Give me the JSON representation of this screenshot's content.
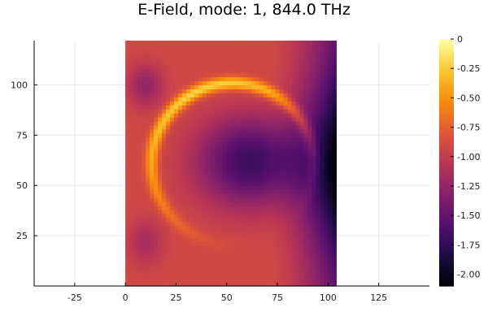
{
  "chart_data": {
    "type": "heatmap",
    "title": "E-Field, mode: 1, 844.0 THz",
    "xlabel": "",
    "ylabel": "",
    "xlim": [
      -45,
      150
    ],
    "ylim": [
      0,
      122
    ],
    "x_ticks": [
      -25,
      0,
      25,
      50,
      75,
      100,
      125
    ],
    "y_ticks": [
      25,
      50,
      75,
      100
    ],
    "x_tick_labels": [
      "-25",
      "0",
      "25",
      "50",
      "75",
      "100",
      "125"
    ],
    "y_tick_labels": [
      "25",
      "50",
      "75",
      "100"
    ],
    "grid": true,
    "data_extent": {
      "x": [
        0,
        104
      ],
      "y": [
        0,
        122
      ]
    },
    "colormap": "inferno",
    "colorbar": {
      "range": [
        -2.1,
        0
      ],
      "ticks": [
        0,
        -0.25,
        -0.5,
        -0.75,
        -1.0,
        -1.25,
        -1.5,
        -1.75,
        -2.0
      ],
      "tick_labels": [
        "0",
        "-0.25",
        "-0.50",
        "-0.75",
        "-1.00",
        "-1.25",
        "-1.50",
        "-1.75",
        "-2.00"
      ]
    },
    "field_features": {
      "ring": {
        "center": [
          53,
          61
        ],
        "radius": 40,
        "max_value": -0.05
      },
      "interior_min": {
        "center": [
          62,
          62
        ],
        "value": -1.7
      },
      "right_edge_value": -2.1,
      "background_value": -0.9
    }
  }
}
